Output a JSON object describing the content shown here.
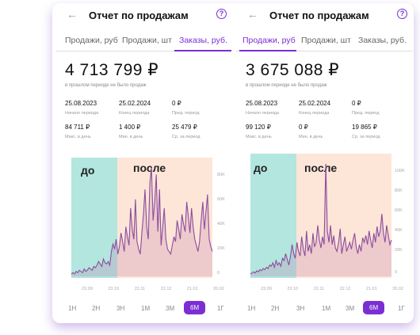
{
  "panels": [
    {
      "title": "Отчет по продажам",
      "tabs": [
        "Продажи, руб",
        "Продажи, шт",
        "Заказы, руб."
      ],
      "active_tab": 2,
      "big_value": "4 713 799 ₽",
      "note": "в прошлом периоде не было продаж",
      "stats": [
        {
          "value": "25.08.2023",
          "label": "Начало периода"
        },
        {
          "value": "25.02.2024",
          "label": "Конец периода"
        },
        {
          "value": "0 ₽",
          "label": "Пред. период"
        },
        {
          "value": "84 711 ₽",
          "label": "Макс. в день"
        },
        {
          "value": "1 400 ₽",
          "label": "Мин. в день"
        },
        {
          "value": "25 479 ₽",
          "label": "Ср. за период"
        }
      ],
      "chart": {
        "before_label": "до",
        "after_label": "после",
        "y_ticks": [
          "80K",
          "60K",
          "40K",
          "20K",
          "0"
        ],
        "x_ticks": [
          "23.09",
          "23.10",
          "22.11",
          "22.12",
          "21.01",
          "20.02"
        ],
        "series": [
          2,
          3,
          2,
          4,
          3,
          5,
          4,
          3,
          6,
          4,
          5,
          7,
          6,
          5,
          8,
          7,
          9,
          12,
          10,
          8,
          14,
          11,
          10,
          12,
          9,
          20,
          26,
          22,
          30,
          18,
          24,
          35,
          28,
          20,
          40,
          32,
          25,
          55,
          38,
          30,
          62,
          28,
          22,
          18,
          35,
          50,
          70,
          40,
          30,
          75,
          88,
          45,
          60,
          82,
          36,
          70,
          25,
          40,
          55,
          30,
          22,
          20,
          18,
          25,
          32,
          28,
          45,
          38,
          30,
          50,
          42,
          36,
          60,
          48,
          35,
          55,
          40,
          30,
          25,
          20,
          28,
          45,
          60,
          38,
          52,
          66,
          30,
          24,
          20
        ]
      },
      "periods": [
        "1Н",
        "2Н",
        "3Н",
        "1М",
        "3М",
        "6М",
        "1Г"
      ],
      "active_period": 5
    },
    {
      "title": "Отчет по продажам",
      "tabs": [
        "Продажи, руб",
        "Продажи, шт",
        "Заказы, руб."
      ],
      "active_tab": 0,
      "big_value": "3 675 088 ₽",
      "note": "в прошлом периоде не было продаж",
      "stats": [
        {
          "value": "25.08.2023",
          "label": "Начало периода"
        },
        {
          "value": "25.02.2024",
          "label": "Конец периода"
        },
        {
          "value": "0 ₽",
          "label": "Пред. период"
        },
        {
          "value": "99 120 ₽",
          "label": "Макс. в день"
        },
        {
          "value": "0 ₽",
          "label": "Мин. в день"
        },
        {
          "value": "19 865 ₽",
          "label": "Ср. за период"
        }
      ],
      "chart": {
        "before_label": "до",
        "after_label": "после",
        "y_ticks": [
          "100K",
          "80K",
          "60K",
          "40K",
          "20K",
          "0"
        ],
        "x_ticks": [
          "23.09",
          "23.10",
          "22.11",
          "22.12",
          "21.01",
          "20.02"
        ],
        "series": [
          2,
          3,
          4,
          3,
          5,
          4,
          6,
          5,
          7,
          6,
          8,
          7,
          10,
          9,
          12,
          8,
          14,
          10,
          12,
          9,
          16,
          14,
          20,
          15,
          10,
          18,
          28,
          20,
          16,
          30,
          22,
          18,
          35,
          24,
          18,
          40,
          22,
          28,
          20,
          38,
          26,
          30,
          45,
          32,
          25,
          35,
          28,
          99,
          40,
          30,
          45,
          28,
          36,
          25,
          22,
          30,
          42,
          20,
          28,
          35,
          22,
          26,
          30,
          24,
          32,
          38,
          26,
          20,
          28,
          22,
          34,
          30,
          36,
          28,
          40,
          32,
          25,
          38,
          30,
          44,
          35,
          40,
          55,
          38,
          30,
          45,
          36,
          28,
          32
        ]
      },
      "periods": [
        "1Н",
        "2Н",
        "3Н",
        "1М",
        "3М",
        "6М",
        "1Г"
      ],
      "active_period": 5
    }
  ]
}
